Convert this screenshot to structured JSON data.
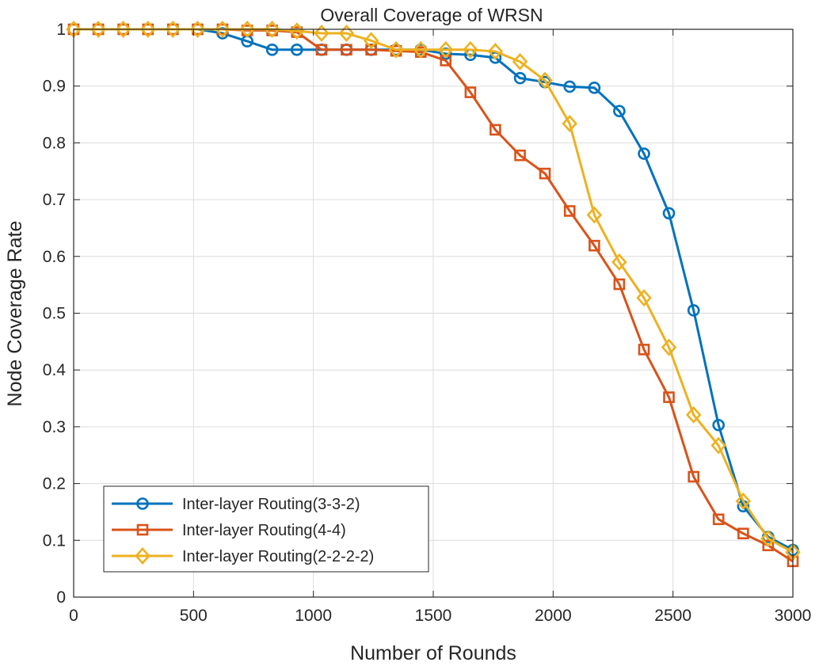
{
  "chart_data": {
    "type": "line",
    "title": "Overall Coverage of WRSN",
    "xlabel": "Number of Rounds",
    "ylabel": "Node Coverage Rate",
    "xlim": [
      0,
      3000
    ],
    "ylim": [
      0,
      1
    ],
    "xticks": [
      0,
      500,
      1000,
      1500,
      2000,
      2500,
      3000
    ],
    "yticks": [
      0,
      0.1,
      0.2,
      0.3,
      0.4,
      0.5,
      0.6,
      0.7,
      0.8,
      0.9,
      1
    ],
    "ytick_labels": [
      "0",
      "0.1",
      "0.2",
      "0.3",
      "0.4",
      "0.5",
      "0.6",
      "0.7",
      "0.8",
      "0.9",
      "1"
    ],
    "grid": true,
    "legend_position": "bottom-left",
    "x": [
      0,
      103,
      207,
      310,
      414,
      517,
      621,
      724,
      828,
      931,
      1034,
      1138,
      1241,
      1345,
      1448,
      1552,
      1655,
      1759,
      1862,
      1966,
      2069,
      2172,
      2276,
      2379,
      2483,
      2586,
      2690,
      2793,
      2897,
      3000
    ],
    "series": [
      {
        "name": "Inter-layer Routing(3-3-2)",
        "color": "#0072BD",
        "marker": "circle",
        "values": [
          1,
          1,
          1,
          1,
          1,
          1,
          0.993,
          0.979,
          0.964,
          0.964,
          0.964,
          0.964,
          0.964,
          0.964,
          0.964,
          0.957,
          0.955,
          0.95,
          0.914,
          0.907,
          0.899,
          0.897,
          0.856,
          0.781,
          0.676,
          0.505,
          0.303,
          0.16,
          0.106,
          0.083
        ]
      },
      {
        "name": "Inter-layer Routing(4-4)",
        "color": "#D95319",
        "marker": "square",
        "values": [
          1,
          1,
          1,
          1,
          1,
          1,
          1,
          0.998,
          0.998,
          0.995,
          0.964,
          0.964,
          0.964,
          0.962,
          0.96,
          0.945,
          0.889,
          0.823,
          0.778,
          0.746,
          0.68,
          0.619,
          0.551,
          0.436,
          0.352,
          0.212,
          0.137,
          0.112,
          0.091,
          0.063
        ]
      },
      {
        "name": "Inter-layer Routing(2-2-2-2)",
        "color": "#EDB120",
        "marker": "diamond",
        "values": [
          1,
          1,
          1,
          1,
          1,
          1,
          1,
          1,
          1,
          0.997,
          0.993,
          0.993,
          0.98,
          0.964,
          0.964,
          0.964,
          0.964,
          0.961,
          0.943,
          0.91,
          0.834,
          0.673,
          0.59,
          0.527,
          0.44,
          0.321,
          0.267,
          0.169,
          0.103,
          0.079
        ]
      }
    ]
  }
}
